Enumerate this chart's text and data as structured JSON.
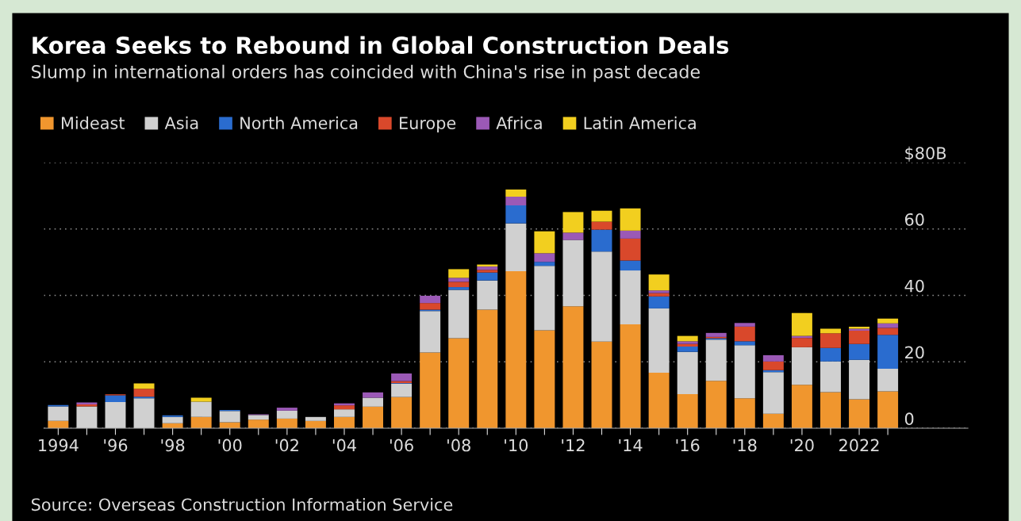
{
  "chart_data": {
    "type": "bar",
    "stacked": true,
    "title": "Korea Seeks to Rebound in Global Construction Deals",
    "subtitle": "Slump in international orders has coincided with China's rise in past decade",
    "categories": [
      "1994",
      null,
      "'96",
      null,
      "'98",
      null,
      "'00",
      null,
      "'02",
      null,
      "'04",
      null,
      "'06",
      null,
      "'08",
      null,
      "'10",
      null,
      "'12",
      null,
      "'14",
      null,
      "'16",
      null,
      "'18",
      null,
      "'20",
      null,
      "2022",
      null
    ],
    "series": [
      {
        "name": "Mideast",
        "color": "#f0962e",
        "values": [
          2.2,
          null,
          null,
          null,
          1.5,
          3.4,
          1.8,
          2.6,
          2.9,
          2.2,
          3.4,
          6.5,
          9.4,
          22.8,
          27.1,
          35.7,
          47.3,
          29.5,
          36.7,
          26.1,
          31.3,
          16.7,
          10.3,
          14.3,
          9.0,
          4.4,
          13.1,
          10.9,
          8.7,
          11.1
        ]
      },
      {
        "name": "Asia",
        "color": "#d0d0d0",
        "values": [
          4.4,
          6.6,
          7.9,
          9.0,
          1.9,
          4.6,
          3.4,
          1.4,
          2.4,
          1.2,
          2.3,
          2.7,
          4.0,
          12.5,
          14.6,
          8.8,
          14.4,
          19.4,
          20.0,
          27.1,
          16.2,
          19.4,
          12.7,
          12.4,
          16.0,
          12.5,
          11.3,
          9.2,
          11.9,
          6.8
        ]
      },
      {
        "name": "North America",
        "color": "#2a6ccf",
        "values": [
          0.4,
          0,
          2.0,
          0.5,
          0.5,
          0,
          0.3,
          0,
          0,
          0,
          0,
          0,
          0.2,
          0.4,
          0.8,
          2.4,
          5.4,
          1.2,
          0,
          6.6,
          3.0,
          3.6,
          1.6,
          0.4,
          1.2,
          0.6,
          0,
          4.1,
          4.8,
          10.2
        ]
      },
      {
        "name": "Europe",
        "color": "#d9482b",
        "values": [
          0,
          0.6,
          0.3,
          2.4,
          0,
          0,
          0,
          0,
          0,
          0,
          1.2,
          0,
          0.6,
          2.0,
          1.6,
          0.8,
          0,
          0,
          0,
          2.4,
          6.6,
          1.0,
          0.8,
          0.4,
          4.4,
          2.6,
          2.8,
          4.4,
          4.0,
          2.1
        ]
      },
      {
        "name": "Africa",
        "color": "#9b59b6",
        "values": [
          0,
          0.6,
          0,
          0,
          0,
          0,
          0,
          0.2,
          0.9,
          0,
          0.6,
          1.6,
          2.3,
          2.2,
          1.2,
          1.0,
          2.6,
          2.6,
          2.2,
          0,
          2.4,
          0.8,
          0.8,
          1.2,
          1.1,
          1.9,
          0.6,
          0,
          0.6,
          1.4
        ]
      },
      {
        "name": "Latin America",
        "color": "#f2cf1f",
        "values": [
          0,
          0,
          0,
          1.6,
          0,
          1.2,
          0,
          0,
          0,
          0,
          0,
          0,
          0,
          0,
          2.6,
          0.6,
          2.2,
          6.6,
          6.2,
          3.3,
          6.7,
          4.8,
          1.6,
          0,
          0,
          0,
          6.9,
          1.4,
          0.6,
          1.4
        ]
      }
    ],
    "ylim": [
      0,
      80
    ],
    "yticks": [
      0,
      20,
      40,
      60,
      {
        "value": 80,
        "label": "$80B"
      }
    ],
    "grid": "y",
    "legend": "top left",
    "annotations": [
      "Source: Overseas Construction Information Service"
    ]
  }
}
